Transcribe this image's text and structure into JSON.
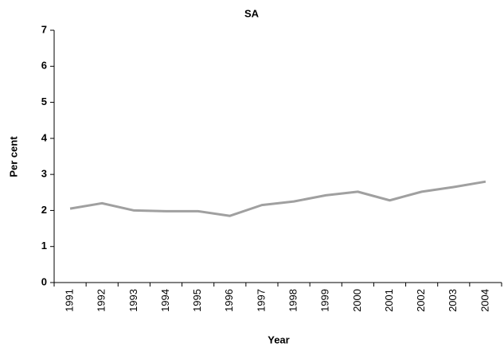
{
  "chart_data": {
    "type": "line",
    "title": "SA",
    "x_label": "Year",
    "y_label": "Per cent",
    "categories": [
      "1991",
      "1992",
      "1993",
      "1994",
      "1995",
      "1996",
      "1997",
      "1998",
      "1999",
      "2000",
      "2001",
      "2002",
      "2003",
      "2004"
    ],
    "values": [
      2.05,
      2.2,
      2.0,
      1.98,
      1.98,
      1.85,
      2.15,
      2.25,
      2.42,
      2.52,
      2.28,
      2.52,
      2.65,
      2.8
    ],
    "color": "#a0a0a0",
    "ylim": [
      0,
      7
    ],
    "yticks": [
      0,
      1,
      2,
      3,
      4,
      5,
      6,
      7
    ],
    "grid": false
  }
}
